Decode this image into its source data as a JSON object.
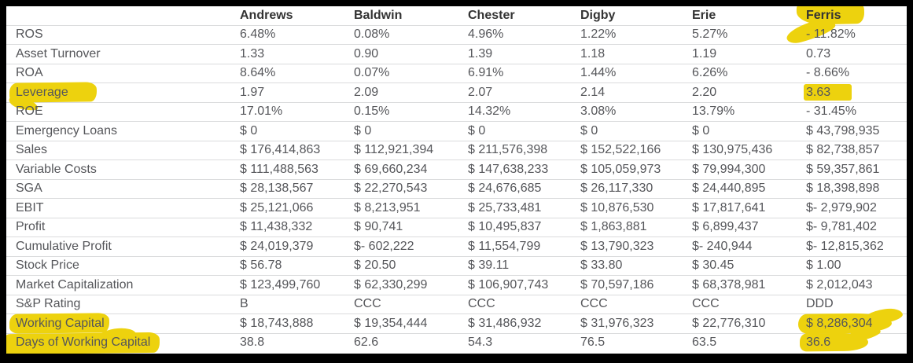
{
  "report": {
    "columns": [
      "Andrews",
      "Baldwin",
      "Chester",
      "Digby",
      "Erie",
      "Ferris"
    ],
    "header_markers": {
      "5": "mk-ferris"
    },
    "rows": [
      {
        "label": "ROS",
        "values": [
          "6.48%",
          "0.08%",
          "4.96%",
          "1.22%",
          "5.27%",
          "- 11.82%"
        ]
      },
      {
        "label": "Asset Turnover",
        "values": [
          "1.33",
          "0.90",
          "1.39",
          "1.18",
          "1.19",
          "0.73"
        ]
      },
      {
        "label": "ROA",
        "values": [
          "8.64%",
          "0.07%",
          "6.91%",
          "1.44%",
          "6.26%",
          "- 8.66%"
        ]
      },
      {
        "label": "Leverage",
        "values": [
          "1.97",
          "2.09",
          "2.07",
          "2.14",
          "2.20",
          "3.63"
        ],
        "label_marker": "mk-leverage",
        "cell_markers": {
          "5": "mk-box"
        }
      },
      {
        "label": "ROE",
        "values": [
          "17.01%",
          "0.15%",
          "14.32%",
          "3.08%",
          "13.79%",
          "- 31.45%"
        ]
      },
      {
        "label": "Emergency Loans",
        "values": [
          "$ 0",
          "$ 0",
          "$ 0",
          "$ 0",
          "$ 0",
          "$ 43,798,935"
        ]
      },
      {
        "label": "Sales",
        "values": [
          "$ 176,414,863",
          "$ 112,921,394",
          "$ 211,576,398",
          "$ 152,522,166",
          "$ 130,975,436",
          "$ 82,738,857"
        ]
      },
      {
        "label": "Variable Costs",
        "values": [
          "$ 111,488,563",
          "$ 69,660,234",
          "$ 147,638,233",
          "$ 105,059,973",
          "$ 79,994,300",
          "$ 59,357,861"
        ]
      },
      {
        "label": "SGA",
        "values": [
          "$ 28,138,567",
          "$ 22,270,543",
          "$ 24,676,685",
          "$ 26,117,330",
          "$ 24,440,895",
          "$ 18,398,898"
        ]
      },
      {
        "label": "EBIT",
        "values": [
          "$ 25,121,066",
          "$ 8,213,951",
          "$ 25,733,481",
          "$ 10,876,530",
          "$ 17,817,641",
          "$- 2,979,902"
        ]
      },
      {
        "label": "Profit",
        "values": [
          "$ 11,438,332",
          "$ 90,741",
          "$ 10,495,837",
          "$ 1,863,881",
          "$ 6,899,437",
          "$- 9,781,402"
        ]
      },
      {
        "label": "Cumulative Profit",
        "values": [
          "$ 24,019,379",
          "$- 602,222",
          "$ 11,554,799",
          "$ 13,790,323",
          "$- 240,944",
          "$- 12,815,362"
        ]
      },
      {
        "label": "Stock Price",
        "values": [
          "$ 56.78",
          "$ 20.50",
          "$ 39.11",
          "$ 33.80",
          "$ 30.45",
          "$ 1.00"
        ]
      },
      {
        "label": "Market Capitalization",
        "values": [
          "$ 123,499,760",
          "$ 62,330,299",
          "$ 106,907,743",
          "$ 70,597,186",
          "$ 68,378,981",
          "$ 2,012,043"
        ]
      },
      {
        "label": "S&P Rating",
        "values": [
          "B",
          "CCC",
          "CCC",
          "CCC",
          "CCC",
          "DDD"
        ]
      },
      {
        "label": "Working Capital",
        "values": [
          "$ 18,743,888",
          "$ 19,354,444",
          "$ 31,486,932",
          "$ 31,976,323",
          "$ 22,776,310",
          "$ 8,286,304"
        ],
        "label_marker": "mk-wc",
        "cell_markers": {
          "5": "mk-wcval"
        }
      },
      {
        "label": "Days of Working Capital",
        "values": [
          "38.8",
          "62.6",
          "54.3",
          "76.5",
          "63.5",
          "36.6"
        ],
        "label_marker": "mk-days",
        "cell_markers": {
          "5": "mk-366"
        }
      }
    ]
  },
  "colors": {
    "frame": "#000000",
    "sheet": "#ffffff",
    "header_text": "#333333",
    "body_text": "#55565a",
    "row_border": "#dadbdc",
    "highlight": "#edd20e"
  }
}
